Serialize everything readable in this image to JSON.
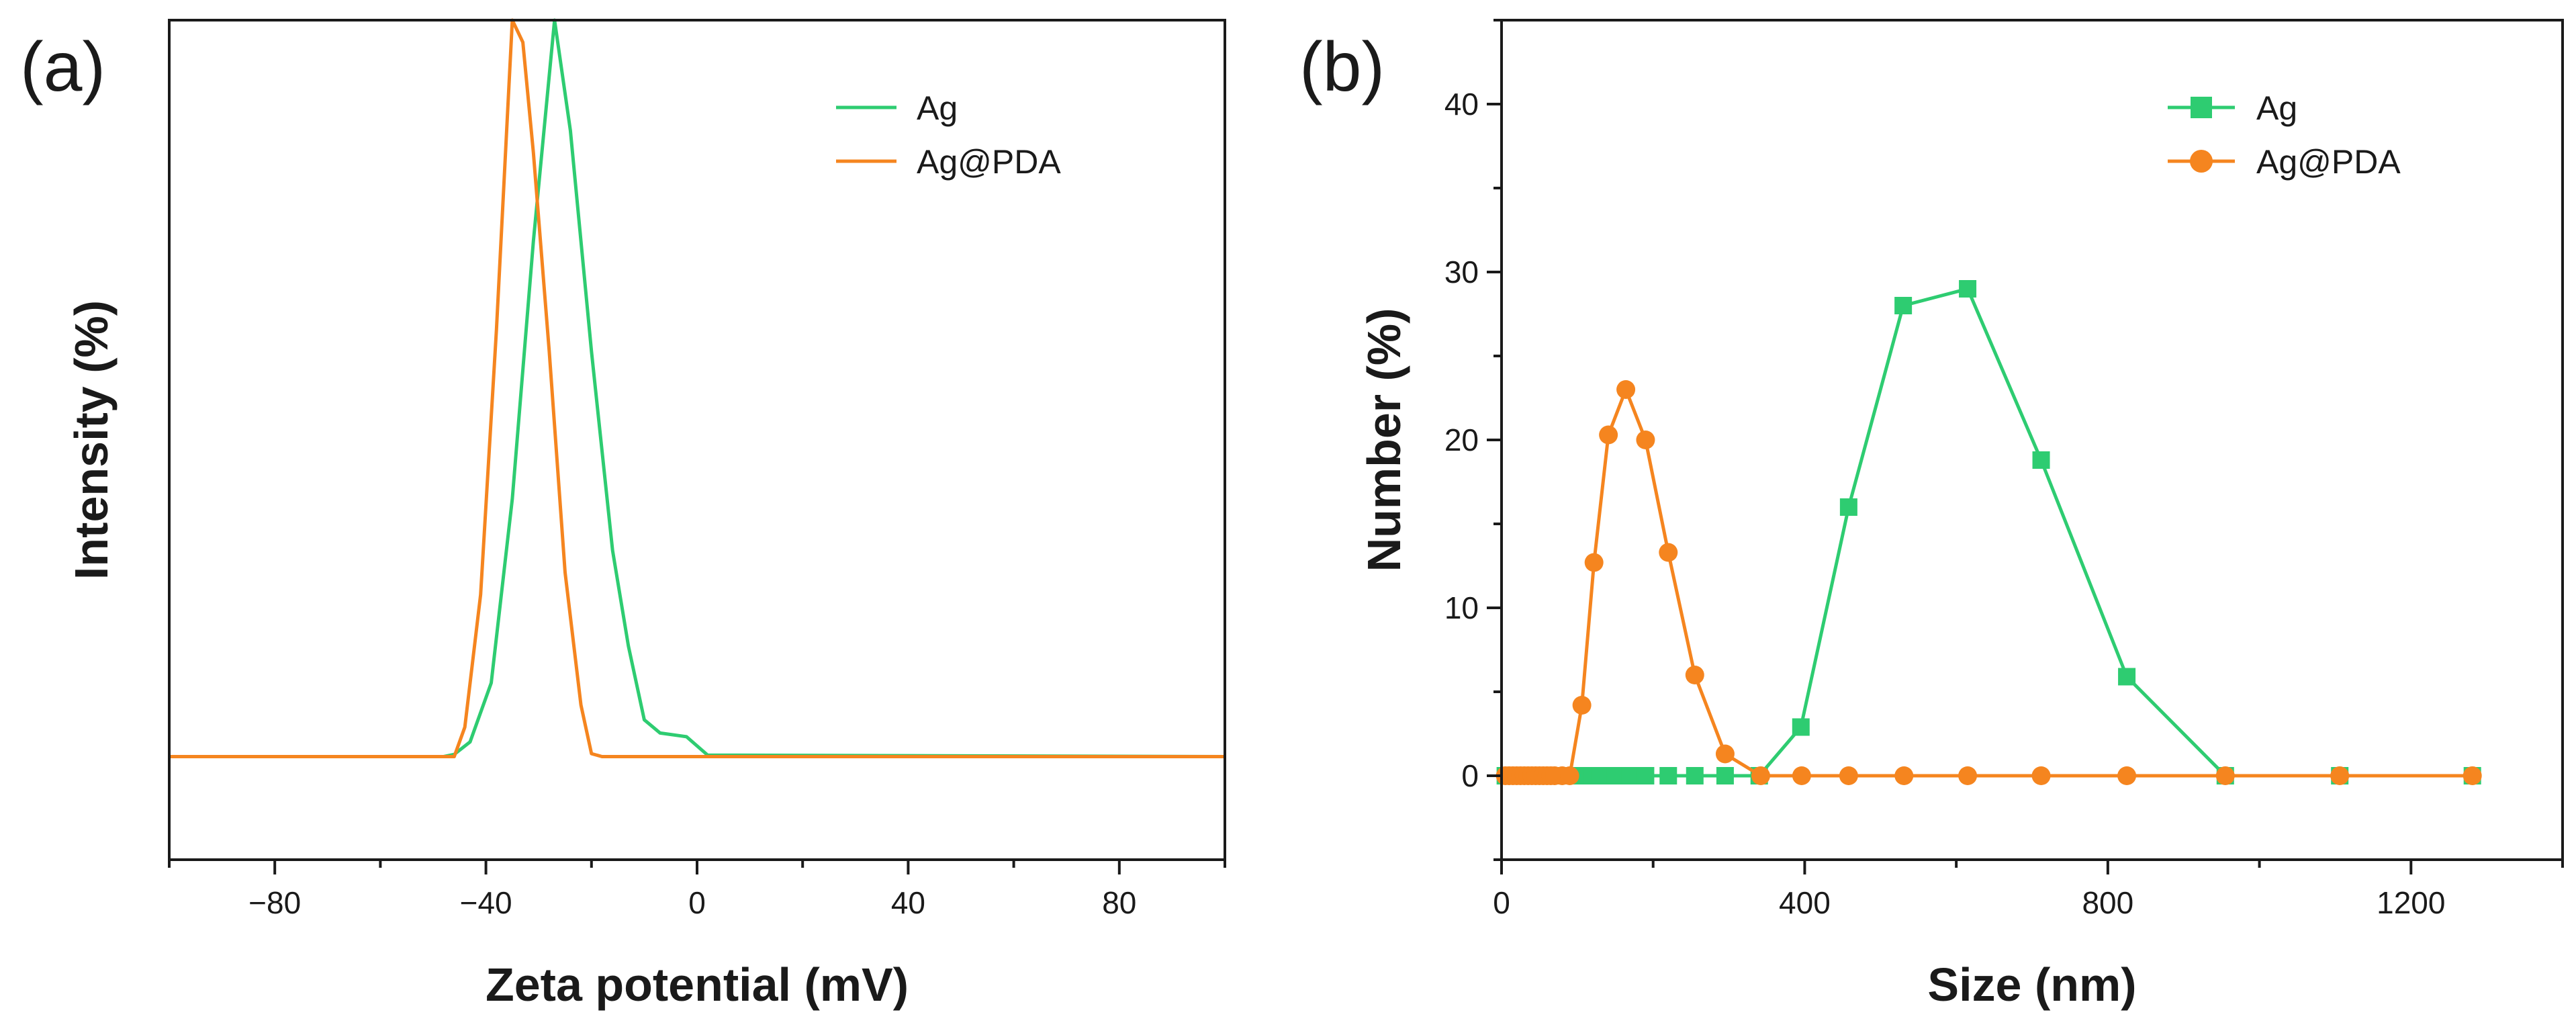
{
  "chart_data": [
    {
      "panel_label": "(a)",
      "type": "line",
      "xlabel": "Zeta potential (mV)",
      "ylabel": "Intensity (%)",
      "xlim": [
        -100,
        100
      ],
      "ylim": [
        -14,
        100
      ],
      "x_ticks": [
        -80,
        -40,
        0,
        40,
        80
      ],
      "y_ticks": [],
      "legend": "top-right",
      "series": [
        {
          "name": "Ag",
          "color": "#2ecc71",
          "marker": "none",
          "points": [
            [
              -100,
              0
            ],
            [
              -48,
              0
            ],
            [
              -46,
              0.3
            ],
            [
              -43,
              2
            ],
            [
              -39,
              10
            ],
            [
              -35,
              35
            ],
            [
              -31,
              70
            ],
            [
              -27,
              100
            ],
            [
              -24,
              85
            ],
            [
              -20,
              55
            ],
            [
              -16,
              28
            ],
            [
              -13,
              15
            ],
            [
              -10,
              5
            ],
            [
              -7,
              3.2
            ],
            [
              -2,
              2.7
            ],
            [
              2,
              0.2
            ],
            [
              100,
              0
            ]
          ]
        },
        {
          "name": "Ag@PDA",
          "color": "#f5851f",
          "marker": "none",
          "points": [
            [
              -100,
              0
            ],
            [
              -46,
              0
            ],
            [
              -44,
              4
            ],
            [
              -41,
              22
            ],
            [
              -38,
              58
            ],
            [
              -35,
              100
            ],
            [
              -33,
              97
            ],
            [
              -31,
              82
            ],
            [
              -28,
              55
            ],
            [
              -25,
              25
            ],
            [
              -22,
              7
            ],
            [
              -20,
              0.4
            ],
            [
              -18,
              0
            ],
            [
              100,
              0
            ]
          ]
        }
      ]
    },
    {
      "panel_label": "(b)",
      "type": "line",
      "xlabel": "Size (nm)",
      "ylabel": "Number (%)",
      "xlim": [
        0,
        1400
      ],
      "ylim": [
        -5,
        45
      ],
      "x_ticks": [
        0,
        400,
        800,
        1200
      ],
      "y_ticks": [
        0,
        10,
        20,
        30,
        40
      ],
      "legend": "top-right",
      "series": [
        {
          "name": "Ag",
          "color": "#2ecc71",
          "marker": "square",
          "points": [
            [
              5,
              0
            ],
            [
              10,
              0
            ],
            [
              15,
              0
            ],
            [
              20,
              0
            ],
            [
              25,
              0
            ],
            [
              30,
              0
            ],
            [
              35,
              0
            ],
            [
              40,
              0
            ],
            [
              45,
              0
            ],
            [
              50,
              0
            ],
            [
              55,
              0
            ],
            [
              60,
              0
            ],
            [
              65,
              0
            ],
            [
              70,
              0
            ],
            [
              75,
              0
            ],
            [
              80,
              0
            ],
            [
              85,
              0
            ],
            [
              90,
              0
            ],
            [
              95,
              0
            ],
            [
              100,
              0
            ],
            [
              110,
              0
            ],
            [
              120,
              0
            ],
            [
              130,
              0
            ],
            [
              140,
              0
            ],
            [
              150,
              0
            ],
            [
              160,
              0
            ],
            [
              170,
              0
            ],
            [
              190,
              0
            ],
            [
              220,
              0
            ],
            [
              255,
              0
            ],
            [
              295,
              0
            ],
            [
              340,
              0
            ],
            [
              395,
              2.9
            ],
            [
              458,
              16
            ],
            [
              530,
              28
            ],
            [
              615,
              29
            ],
            [
              712,
              18.8
            ],
            [
              825,
              5.9
            ],
            [
              955,
              0
            ],
            [
              1106,
              0
            ],
            [
              1281,
              0
            ]
          ]
        },
        {
          "name": "Ag@PDA",
          "color": "#f5851f",
          "marker": "circle",
          "points": [
            [
              5,
              0
            ],
            [
              10,
              0
            ],
            [
              15,
              0
            ],
            [
              20,
              0
            ],
            [
              25,
              0
            ],
            [
              30,
              0
            ],
            [
              35,
              0
            ],
            [
              40,
              0
            ],
            [
              45,
              0
            ],
            [
              50,
              0
            ],
            [
              55,
              0
            ],
            [
              60,
              0
            ],
            [
              65,
              0
            ],
            [
              70,
              0
            ],
            [
              80,
              0
            ],
            [
              90,
              0
            ],
            [
              106,
              4.2
            ],
            [
              122,
              12.7
            ],
            [
              141,
              20.3
            ],
            [
              164,
              23
            ],
            [
              190,
              20
            ],
            [
              220,
              13.3
            ],
            [
              255,
              6
            ],
            [
              295,
              1.3
            ],
            [
              342,
              0
            ],
            [
              396,
              0
            ],
            [
              458,
              0
            ],
            [
              531,
              0
            ],
            [
              615,
              0
            ],
            [
              712,
              0
            ],
            [
              825,
              0
            ],
            [
              955,
              0
            ],
            [
              1106,
              0
            ],
            [
              1281,
              0
            ]
          ]
        }
      ]
    }
  ]
}
